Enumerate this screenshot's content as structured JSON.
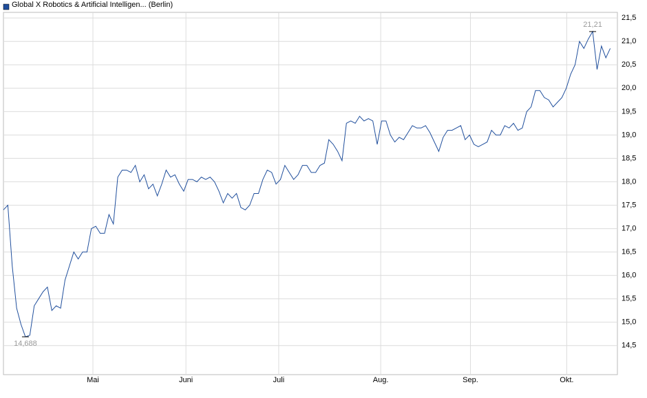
{
  "chart_data": {
    "type": "line",
    "legend_label": "Global X Robotics & Artificial Intelligen... (Berlin)",
    "series": [
      {
        "name": "Global X Robotics & Artificial Intelligen... (Berlin)",
        "color": "#1f4e9c",
        "values": [
          17.4,
          17.5,
          16.2,
          15.3,
          14.95,
          14.688,
          14.72,
          15.35,
          15.5,
          15.65,
          15.75,
          15.25,
          15.35,
          15.3,
          15.9,
          16.2,
          16.5,
          16.35,
          16.5,
          16.5,
          17.0,
          17.05,
          16.9,
          16.9,
          17.3,
          17.1,
          18.1,
          18.25,
          18.25,
          18.2,
          18.35,
          18.0,
          18.15,
          17.85,
          17.95,
          17.7,
          17.95,
          18.25,
          18.1,
          18.15,
          17.95,
          17.8,
          18.05,
          18.05,
          18.0,
          18.1,
          18.05,
          18.1,
          18.0,
          17.8,
          17.55,
          17.75,
          17.65,
          17.75,
          17.45,
          17.4,
          17.5,
          17.75,
          17.75,
          18.05,
          18.25,
          18.2,
          17.95,
          18.05,
          18.35,
          18.2,
          18.05,
          18.15,
          18.35,
          18.35,
          18.2,
          18.2,
          18.35,
          18.4,
          18.9,
          18.8,
          18.65,
          18.45,
          19.25,
          19.3,
          19.25,
          19.4,
          19.3,
          19.35,
          19.3,
          18.8,
          19.3,
          19.3,
          19.0,
          18.85,
          18.95,
          18.9,
          19.05,
          19.2,
          19.15,
          19.15,
          19.2,
          19.05,
          18.85,
          18.65,
          18.95,
          19.1,
          19.1,
          19.15,
          19.2,
          18.9,
          19.0,
          18.8,
          18.75,
          18.8,
          18.85,
          19.1,
          19.0,
          19.0,
          19.2,
          19.15,
          19.25,
          19.1,
          19.15,
          19.5,
          19.6,
          19.95,
          19.95,
          19.8,
          19.75,
          19.6,
          19.7,
          19.8,
          20.0,
          20.3,
          20.5,
          21.0,
          20.85,
          21.05,
          21.21,
          20.4,
          20.9,
          20.65,
          20.85
        ]
      }
    ],
    "annotations": [
      {
        "value": 14.688,
        "label": "14,688"
      },
      {
        "value": 21.21,
        "label": "21,21"
      }
    ],
    "xlim": [
      0,
      139
    ],
    "xticks": [
      {
        "value": 20.35,
        "label": "Mai"
      },
      {
        "value": 41.5,
        "label": "Juni"
      },
      {
        "value": 62.6,
        "label": "Juli"
      },
      {
        "value": 85.8,
        "label": "Aug."
      },
      {
        "value": 106.2,
        "label": "Sep."
      },
      {
        "value": 128.1,
        "label": "Okt."
      }
    ],
    "ylim": [
      13.88,
      21.62
    ],
    "yticks": [
      {
        "value": 14.5,
        "label": "14,5"
      },
      {
        "value": 15.0,
        "label": "15,0"
      },
      {
        "value": 15.5,
        "label": "15,5"
      },
      {
        "value": 16.0,
        "label": "16,0"
      },
      {
        "value": 16.5,
        "label": "16,5"
      },
      {
        "value": 17.0,
        "label": "17,0"
      },
      {
        "value": 17.5,
        "label": "17,5"
      },
      {
        "value": 18.0,
        "label": "18,0"
      },
      {
        "value": 18.5,
        "label": "18,5"
      },
      {
        "value": 19.0,
        "label": "19,0"
      },
      {
        "value": 19.5,
        "label": "19,5"
      },
      {
        "value": 20.0,
        "label": "20,0"
      },
      {
        "value": 20.5,
        "label": "20,5"
      },
      {
        "value": 21.0,
        "label": "21,0"
      },
      {
        "value": 21.5,
        "label": "21,5"
      }
    ],
    "grid": true
  }
}
